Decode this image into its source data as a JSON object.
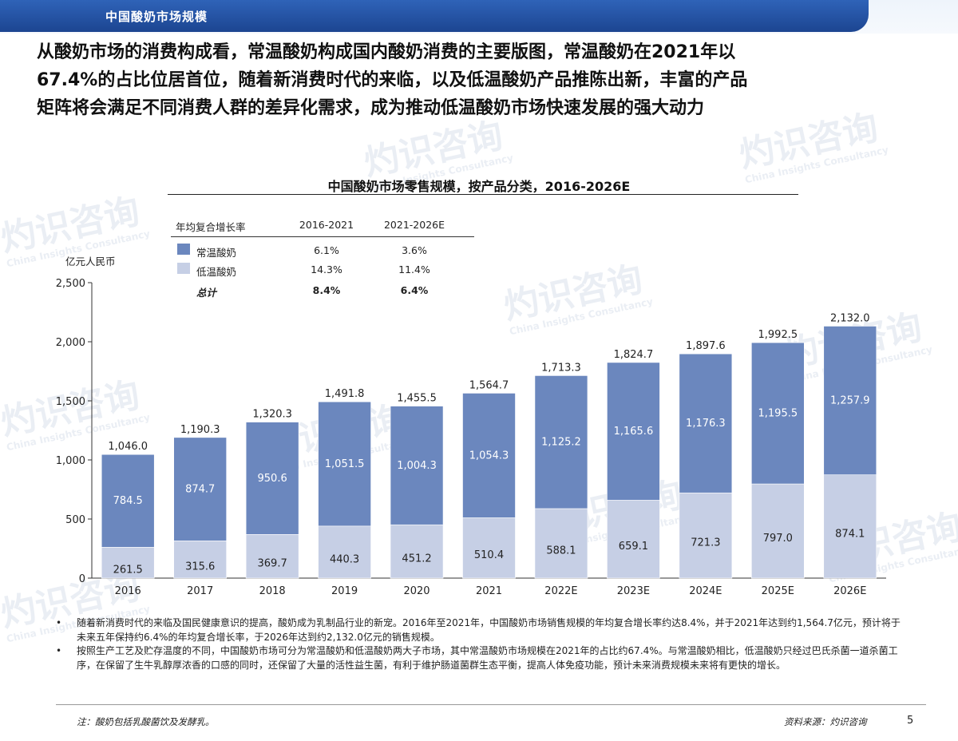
{
  "header": {
    "title": "中国酸奶市场规模"
  },
  "lead": {
    "lines": [
      "从酸奶市场的消费构成看，常温酸奶构成国内酸奶消费的主要版图，常温酸奶在2021年以",
      "67.4%的占比位居首位，随着新消费时代的来临，以及低温酸奶产品推陈出新，丰富的产品",
      "矩阵将会满足不同消费人群的差异化需求，成为推动低温酸奶市场快速发展的强大动力"
    ]
  },
  "watermark": {
    "cn": "灼识咨询",
    "en": "China Insights Consultancy"
  },
  "cagr_table": {
    "header": [
      "年均复合增长率",
      "2016-2021",
      "2021-2026E"
    ],
    "rows": [
      {
        "label": "常温酸奶",
        "v1": "6.1%",
        "v2": "3.6%",
        "color": "#6b87be"
      },
      {
        "label": "低温酸奶",
        "v1": "14.3%",
        "v2": "11.4%",
        "color": "#c6cfe5"
      },
      {
        "label": "总计",
        "v1": "8.4%",
        "v2": "6.4%",
        "color": ""
      }
    ]
  },
  "chart_data": {
    "type": "bar",
    "stacked": true,
    "title": "中国酸奶市场零售规模，按产品分类，2016-2026E",
    "ylabel": "亿元人民币",
    "ylim": [
      0,
      2500
    ],
    "yticks": [
      0,
      500,
      1000,
      1500,
      2000,
      2500
    ],
    "ytick_labels": [
      "0",
      "500",
      "1,000",
      "1,500",
      "2,000",
      "2,500"
    ],
    "categories": [
      "2016",
      "2017",
      "2018",
      "2019",
      "2020",
      "2021",
      "2022E",
      "2023E",
      "2024E",
      "2025E",
      "2026E"
    ],
    "series": [
      {
        "name": "低温酸奶",
        "color": "#c6cfe5",
        "values": [
          261.5,
          315.6,
          369.7,
          440.3,
          451.2,
          510.4,
          588.1,
          659.1,
          721.3,
          797.0,
          874.1
        ],
        "labels": [
          "261.5",
          "315.6",
          "369.7",
          "440.3",
          "451.2",
          "510.4",
          "588.1",
          "659.1",
          "721.3",
          "797.0",
          "874.1"
        ]
      },
      {
        "name": "常温酸奶",
        "color": "#6b87be",
        "values": [
          784.5,
          874.7,
          950.6,
          1051.5,
          1004.3,
          1054.3,
          1125.2,
          1165.6,
          1176.3,
          1195.5,
          1257.9
        ],
        "labels": [
          "784.5",
          "874.7",
          "950.6",
          "1,051.5",
          "1,004.3",
          "1,054.3",
          "1,125.2",
          "1,165.6",
          "1,176.3",
          "1,195.5",
          "1,257.9"
        ]
      }
    ],
    "totals": [
      1046.0,
      1190.3,
      1320.3,
      1491.8,
      1455.5,
      1564.7,
      1713.3,
      1824.7,
      1897.6,
      1992.5,
      2132.0
    ],
    "total_labels": [
      "1,046.0",
      "1,190.3",
      "1,320.3",
      "1,491.8",
      "1,455.5",
      "1,564.7",
      "1,713.3",
      "1,824.7",
      "1,897.6",
      "1,992.5",
      "2,132.0"
    ],
    "grid": false,
    "legend": "top-left"
  },
  "notes": [
    {
      "bullet": "•",
      "text": "随着新消费时代的来临及国民健康意识的提高，酸奶成为乳制品行业的新宠。2016年至2021年，中国酸奶市场销售规模的年均复合增长率约达8.4%，并于2021年达到约1,564.7亿元，预计将于未来五年保持约6.4%的年均复合增长率，于2026年达到约2,132.0亿元的销售规模。"
    },
    {
      "bullet": "•",
      "text": "按照生产工艺及贮存温度的不同，中国酸奶市场可分为常温酸奶和低温酸奶两大子市场，其中常温酸奶市场规模在2021年的占比约67.4%。与常温酸奶相比，低温酸奶只经过巴氏杀菌一道杀菌工序，在保留了生牛乳醇厚浓香的口感的同时，还保留了大量的活性益生菌，有利于维护肠道菌群生态平衡，提高人体免疫功能，预计未来消费规模未来将有更快的增长。"
    }
  ],
  "footer": {
    "note": "注：酸奶包括乳酸菌饮及发酵乳。",
    "source": "资料来源：灼识咨询",
    "page": "5"
  }
}
